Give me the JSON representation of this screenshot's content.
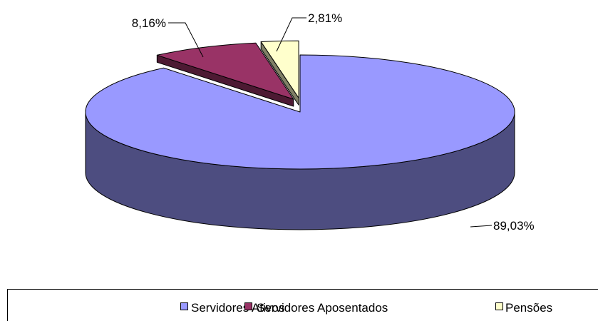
{
  "chart_data": {
    "type": "pie",
    "categories": [
      "Servidores Ativos",
      "Servidores Aposentados",
      "Pensões"
    ],
    "values": [
      89.03,
      8.16,
      2.81
    ],
    "value_labels": [
      "89,03%",
      "8,16%",
      "2,81%"
    ],
    "colors": [
      "#9999ff",
      "#993366",
      "#ffffcc"
    ],
    "legend": "bottom"
  }
}
